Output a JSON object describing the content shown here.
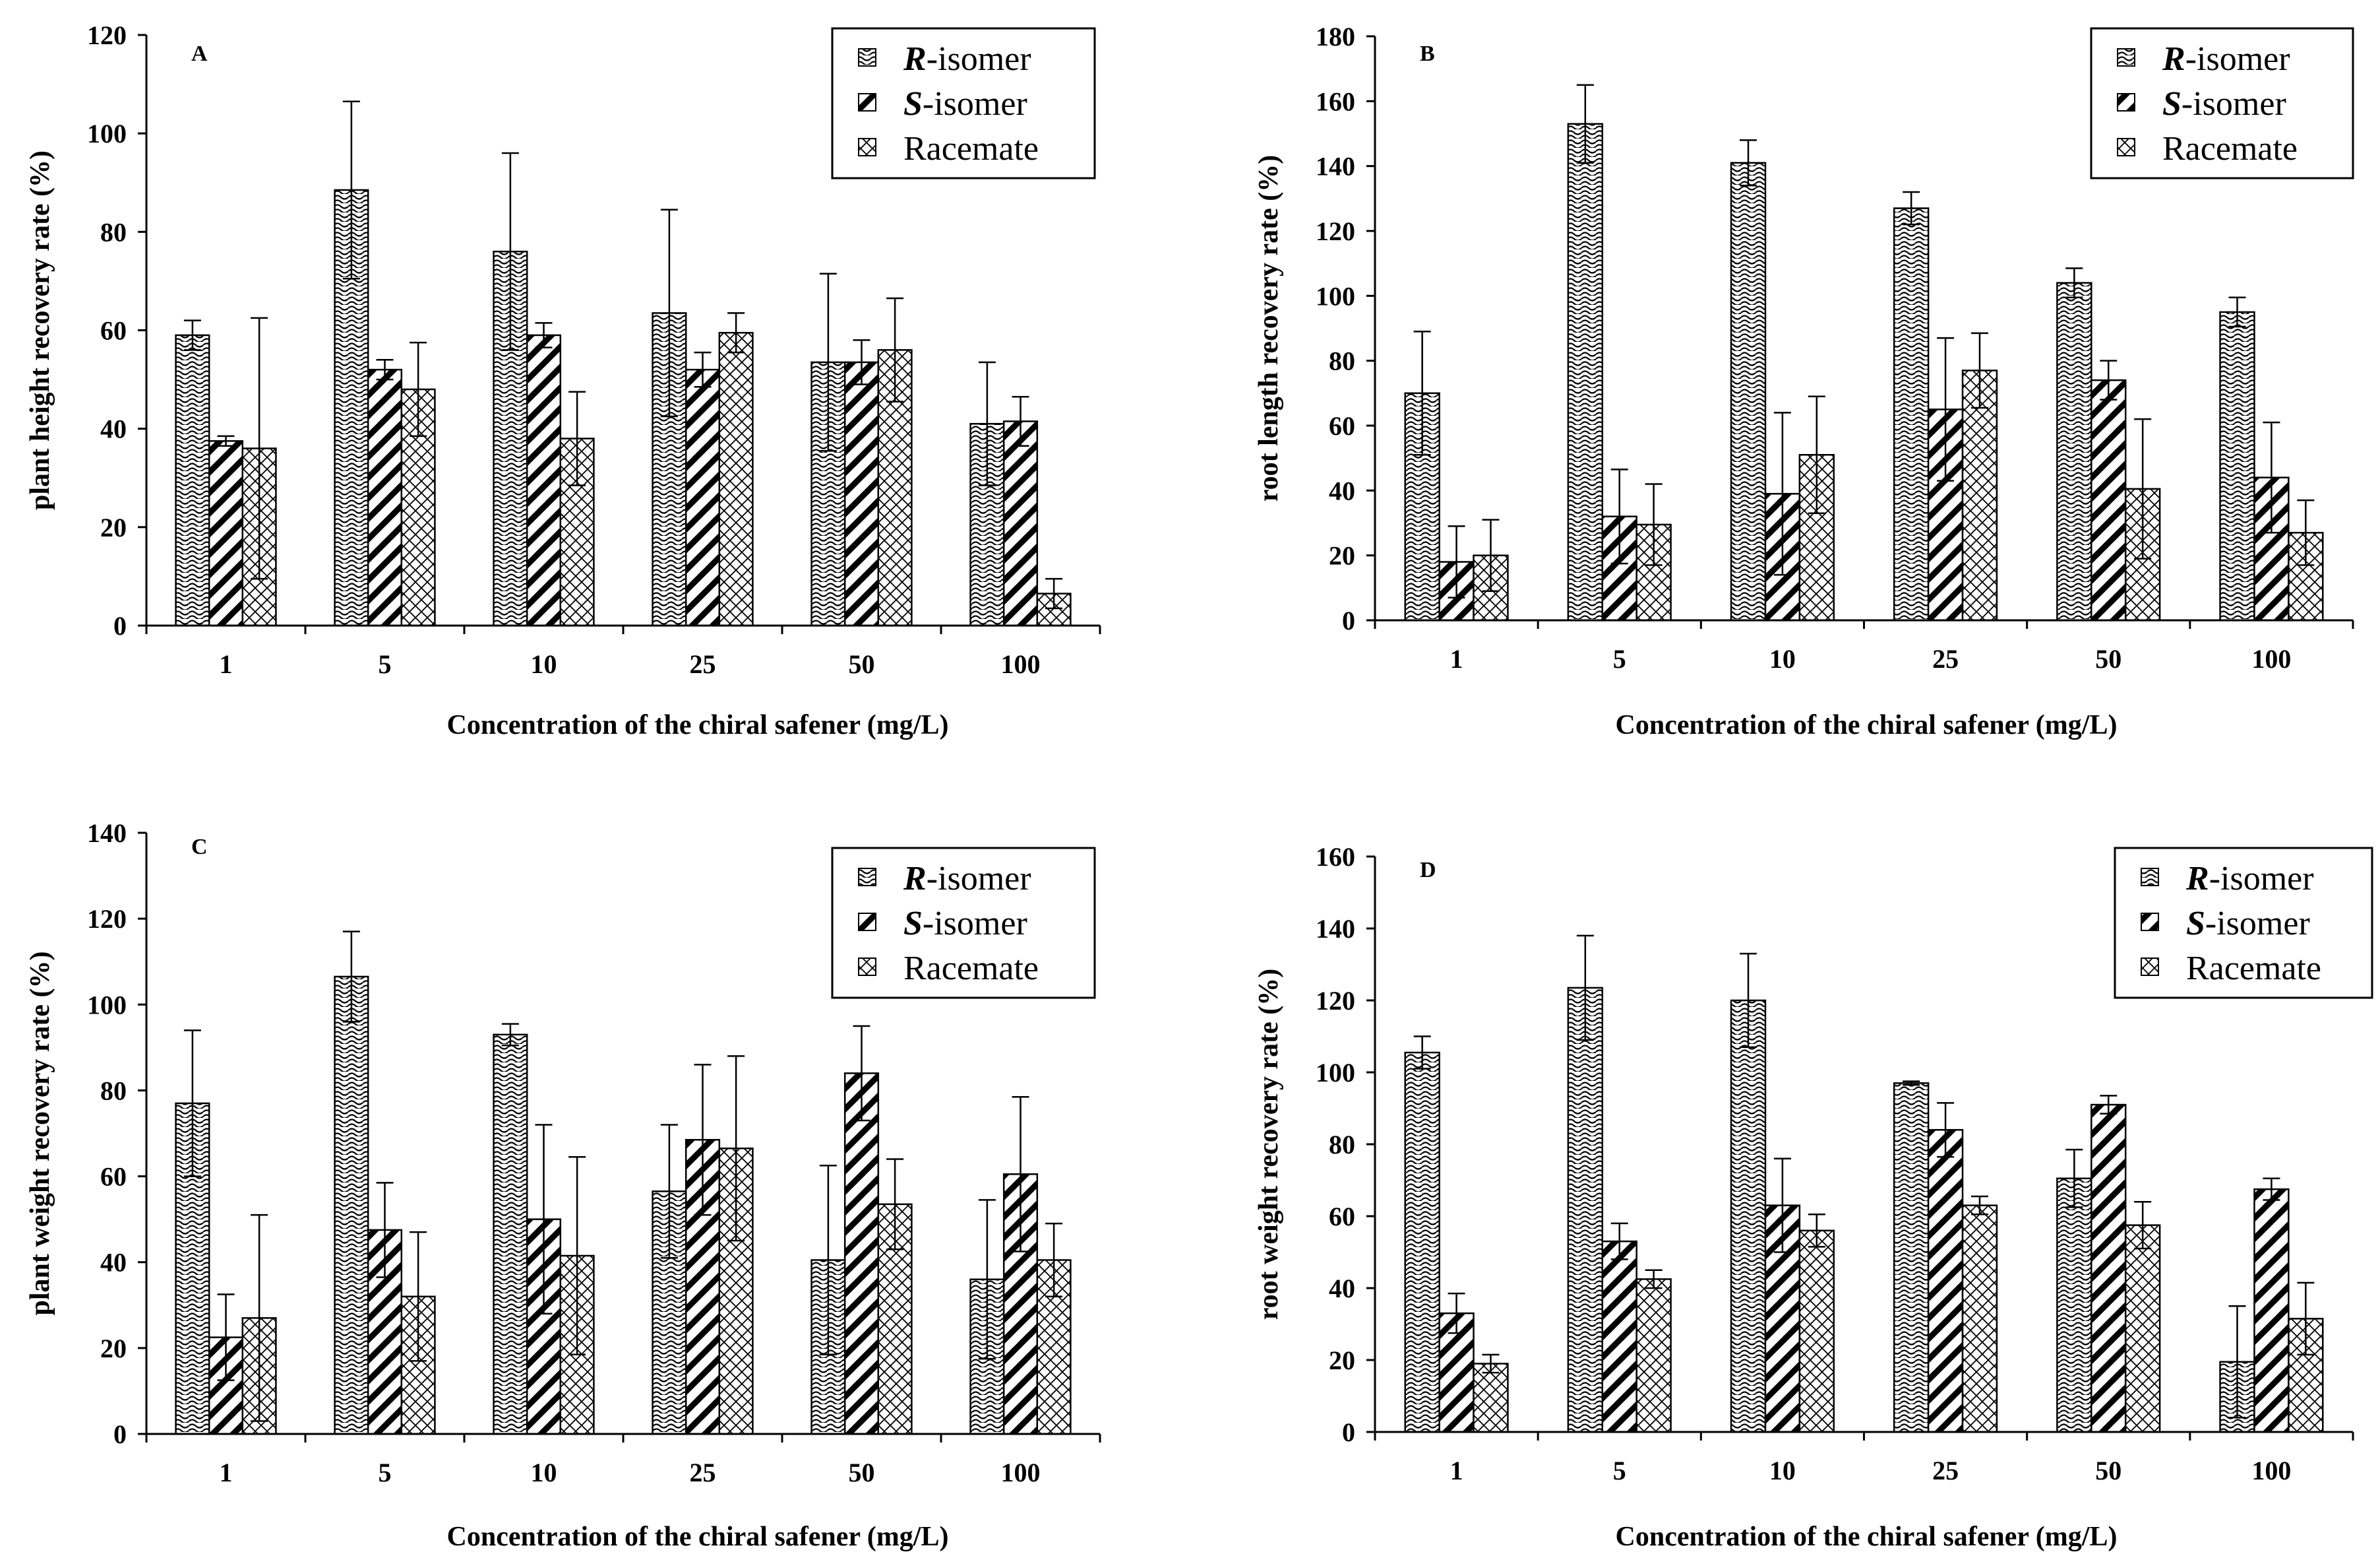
{
  "colors": {
    "ink": "#000000",
    "background": "#ffffff"
  },
  "chart_data": [
    {
      "panel": "A",
      "type": "bar",
      "xlabel": "Concentration of the chiral safener (mg/L)",
      "ylabel": "plant height recovery rate (%)",
      "ylim": [
        0,
        120
      ],
      "yticks": [
        0,
        20,
        40,
        60,
        80,
        100,
        120
      ],
      "categories": [
        "1",
        "5",
        "10",
        "25",
        "50",
        "100"
      ],
      "legend_position": "top-right",
      "series": [
        {
          "name_em": "R",
          "name_rest": "-isomer",
          "pattern": "wave",
          "values": [
            59,
            88.5,
            76,
            63.5,
            53.5,
            41
          ],
          "errors": [
            3,
            18,
            20,
            21,
            18,
            12.5
          ]
        },
        {
          "name_em": "S",
          "name_rest": "-isomer",
          "pattern": "diag",
          "values": [
            37.5,
            52,
            59,
            52,
            53.5,
            41.5
          ],
          "errors": [
            1,
            2,
            2.5,
            3.5,
            4.5,
            5
          ]
        },
        {
          "name_em": "",
          "name_rest": "Racemate",
          "pattern": "cross",
          "values": [
            36,
            48,
            38,
            59.5,
            56,
            6.5
          ],
          "errors": [
            26.5,
            9.5,
            9.5,
            4,
            10.5,
            3
          ]
        }
      ]
    },
    {
      "panel": "B",
      "type": "bar",
      "xlabel": "Concentration of the chiral safener (mg/L)",
      "ylabel": "root length recovery rate (%)",
      "ylim": [
        0,
        180
      ],
      "yticks": [
        0,
        20,
        40,
        60,
        80,
        100,
        120,
        140,
        160,
        180
      ],
      "categories": [
        "1",
        "5",
        "10",
        "25",
        "50",
        "100"
      ],
      "legend_position": "top-right",
      "series": [
        {
          "name_em": "R",
          "name_rest": "-isomer",
          "pattern": "wave",
          "values": [
            70,
            153,
            141,
            127,
            104,
            95
          ],
          "errors": [
            19,
            12,
            7,
            5,
            4.5,
            4.5
          ]
        },
        {
          "name_em": "S",
          "name_rest": "-isomer",
          "pattern": "diag",
          "values": [
            18,
            32,
            39,
            65,
            74,
            44
          ],
          "errors": [
            11,
            14.5,
            25,
            22,
            6,
            17
          ]
        },
        {
          "name_em": "",
          "name_rest": "Racemate",
          "pattern": "cross",
          "values": [
            20,
            29.5,
            51,
            77,
            40.5,
            27
          ],
          "errors": [
            11,
            12.5,
            18,
            11.5,
            21.5,
            10
          ]
        }
      ]
    },
    {
      "panel": "C",
      "type": "bar",
      "xlabel": "Concentration of the chiral safener (mg/L)",
      "ylabel": "plant weight recovery rate (%)",
      "ylim": [
        0,
        140
      ],
      "yticks": [
        0,
        20,
        40,
        60,
        80,
        100,
        120,
        140
      ],
      "categories": [
        "1",
        "5",
        "10",
        "25",
        "50",
        "100"
      ],
      "legend_position": "top-right",
      "series": [
        {
          "name_em": "R",
          "name_rest": "-isomer",
          "pattern": "wave",
          "values": [
            77,
            106.5,
            93,
            56.5,
            40.5,
            36
          ],
          "errors": [
            17,
            10.5,
            2.5,
            15.5,
            22,
            18.5
          ]
        },
        {
          "name_em": "S",
          "name_rest": "-isomer",
          "pattern": "diag",
          "values": [
            22.5,
            47.5,
            50,
            68.5,
            84,
            60.5
          ],
          "errors": [
            10,
            11,
            22,
            17.5,
            11,
            18
          ]
        },
        {
          "name_em": "",
          "name_rest": "Racemate",
          "pattern": "cross",
          "values": [
            27,
            32,
            41.5,
            66.5,
            53.5,
            40.5
          ],
          "errors": [
            24,
            15,
            23,
            21.5,
            10.5,
            8.5
          ]
        }
      ]
    },
    {
      "panel": "D",
      "type": "bar",
      "xlabel": "Concentration of the chiral safener (mg/L)",
      "ylabel": "root weight recovery rate (%)",
      "ylim": [
        0,
        160
      ],
      "yticks": [
        0,
        20,
        40,
        60,
        80,
        100,
        120,
        140,
        160
      ],
      "categories": [
        "1",
        "5",
        "10",
        "25",
        "50",
        "100"
      ],
      "legend_position": "top-right",
      "series": [
        {
          "name_em": "R",
          "name_rest": "-isomer",
          "pattern": "wave",
          "values": [
            105.5,
            123.5,
            120,
            97,
            70.5,
            19.5
          ],
          "errors": [
            4.5,
            14.5,
            13,
            0.5,
            8,
            15.5
          ]
        },
        {
          "name_em": "S",
          "name_rest": "-isomer",
          "pattern": "diag",
          "values": [
            33,
            53,
            63,
            84,
            91,
            67.5
          ],
          "errors": [
            5.5,
            5,
            13,
            7.5,
            2.5,
            3
          ]
        },
        {
          "name_em": "",
          "name_rest": "Racemate",
          "pattern": "cross",
          "values": [
            19,
            42.5,
            56,
            63,
            57.5,
            31.5
          ],
          "errors": [
            2.5,
            2.5,
            4.5,
            2.5,
            6.5,
            10
          ]
        }
      ]
    }
  ]
}
